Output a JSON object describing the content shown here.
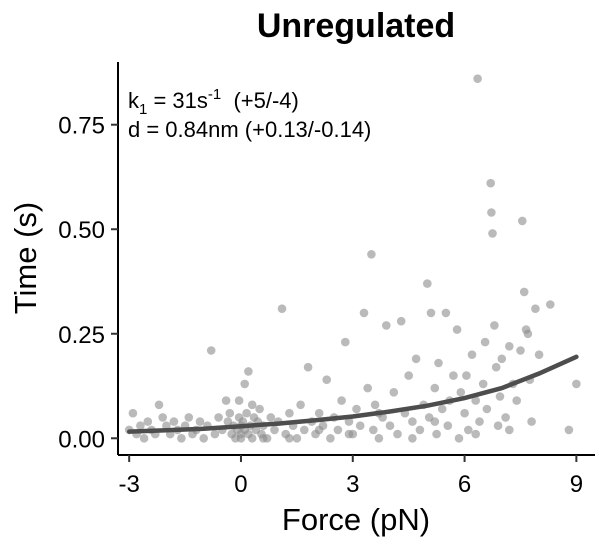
{
  "chart_data": {
    "type": "scatter",
    "title": "Unregulated",
    "xlabel": "Force (pN)",
    "ylabel": "Time (s)",
    "xlim": [
      -3.3,
      9.5
    ],
    "ylim": [
      -0.04,
      0.9
    ],
    "x_ticks": [
      -3,
      0,
      3,
      6,
      9
    ],
    "x_tick_labels": [
      "-3",
      "0",
      "3",
      "6",
      "9"
    ],
    "y_ticks": [
      0.0,
      0.25,
      0.5,
      0.75
    ],
    "y_tick_labels": [
      "0.00",
      "0.25",
      "0.50",
      "0.75"
    ],
    "grid": false,
    "point_color": "#8c8c8c",
    "fit_color": "#4d4d4d",
    "annotation": {
      "line1_prefix": "k",
      "line1_sub": "1",
      "line1_mid": " = 31s",
      "line1_sup": "-1",
      "line1_suffix": "  (+5/-4)",
      "line2": "d = 0.84nm (+0.13/-0.14)"
    },
    "fit_line": {
      "x": [
        -3.0,
        -2.0,
        -1.0,
        0.0,
        1.0,
        2.0,
        3.0,
        4.0,
        5.0,
        6.0,
        7.0,
        8.0,
        9.0
      ],
      "y": [
        0.016,
        0.019,
        0.023,
        0.029,
        0.035,
        0.043,
        0.052,
        0.064,
        0.078,
        0.096,
        0.12,
        0.155,
        0.195
      ]
    },
    "points": [
      [
        -3.0,
        0.02
      ],
      [
        -2.9,
        0.06
      ],
      [
        -2.8,
        0.01
      ],
      [
        -2.7,
        0.03
      ],
      [
        -2.6,
        0.0
      ],
      [
        -2.5,
        0.04
      ],
      [
        -2.4,
        0.02
      ],
      [
        -2.3,
        0.01
      ],
      [
        -2.2,
        0.08
      ],
      [
        -2.1,
        0.05
      ],
      [
        -2.0,
        0.03
      ],
      [
        -1.9,
        0.01
      ],
      [
        -1.8,
        0.04
      ],
      [
        -1.7,
        0.02
      ],
      [
        -1.6,
        0.0
      ],
      [
        -1.5,
        0.03
      ],
      [
        -1.4,
        0.05
      ],
      [
        -1.3,
        0.01
      ],
      [
        -1.2,
        0.02
      ],
      [
        -1.1,
        0.04
      ],
      [
        -1.0,
        0.0
      ],
      [
        -0.9,
        0.03
      ],
      [
        -0.8,
        0.21
      ],
      [
        -0.7,
        0.01
      ],
      [
        -0.6,
        0.05
      ],
      [
        -0.5,
        0.02
      ],
      [
        -0.4,
        0.09
      ],
      [
        -0.35,
        0.04
      ],
      [
        -0.3,
        0.06
      ],
      [
        -0.25,
        0.01
      ],
      [
        -0.2,
        0.03
      ],
      [
        -0.15,
        0.0
      ],
      [
        -0.1,
        0.02
      ],
      [
        -0.05,
        0.05
      ],
      [
        0.0,
        0.03
      ],
      [
        0.0,
        0.0
      ],
      [
        0.0,
        0.01
      ],
      [
        -0.05,
        0.09
      ],
      [
        0.05,
        0.04
      ],
      [
        0.1,
        0.02
      ],
      [
        0.15,
        0.06
      ],
      [
        0.2,
        0.01
      ],
      [
        0.25,
        0.03
      ],
      [
        0.3,
        0.08
      ],
      [
        0.3,
        0.0
      ],
      [
        0.1,
        0.13
      ],
      [
        0.2,
        0.16
      ],
      [
        0.35,
        0.05
      ],
      [
        0.4,
        0.02
      ],
      [
        0.45,
        0.04
      ],
      [
        0.5,
        0.07
      ],
      [
        0.55,
        0.01
      ],
      [
        0.6,
        0.03
      ],
      [
        0.7,
        0.0
      ],
      [
        0.8,
        0.05
      ],
      [
        0.9,
        0.02
      ],
      [
        1.0,
        0.04
      ],
      [
        1.1,
        0.31
      ],
      [
        1.2,
        0.01
      ],
      [
        1.3,
        0.06
      ],
      [
        1.4,
        0.03
      ],
      [
        1.5,
        0.0
      ],
      [
        1.6,
        0.08
      ],
      [
        1.7,
        0.02
      ],
      [
        1.8,
        0.17
      ],
      [
        1.9,
        0.04
      ],
      [
        2.0,
        0.01
      ],
      [
        2.1,
        0.06
      ],
      [
        2.2,
        0.03
      ],
      [
        2.3,
        0.14
      ],
      [
        2.4,
        0.0
      ],
      [
        2.5,
        0.05
      ],
      [
        2.6,
        0.02
      ],
      [
        2.7,
        0.09
      ],
      [
        2.8,
        0.23
      ],
      [
        2.9,
        0.04
      ],
      [
        3.0,
        0.01
      ],
      [
        3.1,
        0.07
      ],
      [
        3.2,
        0.03
      ],
      [
        3.3,
        0.3
      ],
      [
        3.4,
        0.12
      ],
      [
        3.5,
        0.44
      ],
      [
        3.55,
        0.02
      ],
      [
        3.6,
        0.08
      ],
      [
        3.7,
        0.0
      ],
      [
        3.8,
        0.05
      ],
      [
        3.9,
        0.27
      ],
      [
        4.0,
        0.03
      ],
      [
        4.1,
        0.11
      ],
      [
        4.2,
        0.01
      ],
      [
        4.3,
        0.28
      ],
      [
        4.4,
        0.06
      ],
      [
        4.5,
        0.15
      ],
      [
        4.6,
        0.04
      ],
      [
        4.7,
        0.19
      ],
      [
        4.8,
        0.02
      ],
      [
        4.9,
        0.08
      ],
      [
        5.0,
        0.37
      ],
      [
        5.05,
        0.05
      ],
      [
        5.1,
        0.3
      ],
      [
        5.2,
        0.12
      ],
      [
        5.25,
        0.01
      ],
      [
        5.3,
        0.18
      ],
      [
        5.4,
        0.07
      ],
      [
        5.5,
        0.3
      ],
      [
        5.55,
        0.03
      ],
      [
        5.6,
        0.09
      ],
      [
        5.7,
        0.15
      ],
      [
        5.8,
        0.26
      ],
      [
        5.85,
        0.0
      ],
      [
        5.9,
        0.11
      ],
      [
        6.0,
        0.06
      ],
      [
        6.05,
        0.15
      ],
      [
        6.1,
        0.02
      ],
      [
        6.2,
        0.2
      ],
      [
        6.3,
        0.09
      ],
      [
        6.35,
        0.86
      ],
      [
        6.4,
        0.04
      ],
      [
        6.5,
        0.13
      ],
      [
        6.55,
        0.23
      ],
      [
        6.6,
        0.07
      ],
      [
        6.7,
        0.61
      ],
      [
        6.72,
        0.54
      ],
      [
        6.75,
        0.49
      ],
      [
        6.8,
        0.27
      ],
      [
        6.85,
        0.17
      ],
      [
        6.9,
        0.03
      ],
      [
        6.95,
        0.1
      ],
      [
        7.0,
        0.19
      ],
      [
        7.1,
        0.05
      ],
      [
        7.2,
        0.22
      ],
      [
        7.3,
        0.13
      ],
      [
        7.4,
        0.09
      ],
      [
        7.5,
        0.21
      ],
      [
        7.55,
        0.52
      ],
      [
        7.6,
        0.35
      ],
      [
        7.65,
        0.26
      ],
      [
        7.7,
        0.25
      ],
      [
        7.75,
        0.14
      ],
      [
        7.8,
        0.04
      ],
      [
        7.9,
        0.31
      ],
      [
        8.0,
        0.2
      ],
      [
        8.3,
        0.32
      ],
      [
        8.8,
        0.02
      ],
      [
        9.0,
        0.13
      ],
      [
        7.2,
        0.02
      ],
      [
        6.3,
        0.01
      ],
      [
        5.2,
        0.04
      ],
      [
        4.6,
        0.0
      ],
      [
        3.7,
        0.06
      ],
      [
        2.9,
        0.01
      ],
      [
        2.1,
        0.02
      ],
      [
        1.3,
        0.0
      ],
      [
        0.6,
        0.0
      ]
    ]
  }
}
